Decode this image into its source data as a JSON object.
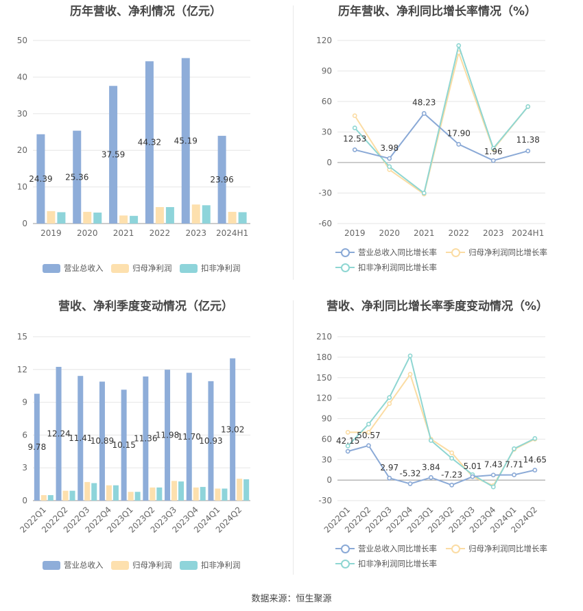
{
  "source": "数据来源：恒生聚源",
  "colors": {
    "revenue": "#8eadd9",
    "parent": "#fde0ae",
    "nonrec": "#8ed4da",
    "revenue_line": "#8aa9d6",
    "parent_line": "#fbdca3",
    "nonrec_line": "#8ed6d2",
    "grid": "#e6e6e6",
    "axis": "#666666"
  },
  "chart_data": [
    {
      "type": "bar",
      "title": "历年营收、净利情况（亿元）",
      "categories": [
        "2019",
        "2020",
        "2021",
        "2022",
        "2023",
        "2024H1"
      ],
      "ylim": [
        0,
        50
      ],
      "yticks": [
        0,
        10,
        20,
        30,
        40,
        50
      ],
      "series": [
        {
          "name": "营业总收入",
          "values": [
            24.39,
            25.36,
            37.59,
            44.32,
            45.19,
            23.96
          ],
          "labeled": true
        },
        {
          "name": "归母净利润",
          "values": [
            3.4,
            3.2,
            2.2,
            4.5,
            5.2,
            3.2
          ],
          "labeled": false
        },
        {
          "name": "扣非净利润",
          "values": [
            3.1,
            3.0,
            2.1,
            4.5,
            5.0,
            3.1
          ],
          "labeled": false
        }
      ],
      "labels": [
        "24.39",
        "25.36",
        "37.59",
        "44.32",
        "45.19",
        "23.96"
      ],
      "legend": "bottom"
    },
    {
      "type": "line",
      "title": "历年营收、净利同比增长率情况（%）",
      "categories": [
        "2019",
        "2020",
        "2021",
        "2022",
        "2023",
        "2024H1"
      ],
      "ylim": [
        -60,
        120
      ],
      "yticks": [
        -60,
        -30,
        0,
        30,
        60,
        90,
        120
      ],
      "series": [
        {
          "name": "营业总收入同比增长率",
          "values": [
            12.53,
            3.98,
            48.23,
            17.9,
            1.96,
            11.38
          ],
          "labeled": true
        },
        {
          "name": "归母净利润同比增长率",
          "values": [
            46,
            -7,
            -31,
            108,
            13,
            55
          ],
          "labeled": false
        },
        {
          "name": "扣非净利润同比增长率",
          "values": [
            34,
            -4,
            -30,
            115,
            14,
            55
          ],
          "labeled": false
        }
      ],
      "labels": [
        "12.53",
        "3.98",
        "48.23",
        "17.90",
        "1.96",
        "11.38"
      ],
      "legend": "bottom"
    },
    {
      "type": "bar",
      "title": "营收、净利季度变动情况（亿元）",
      "categories": [
        "2022Q1",
        "2022Q2",
        "2022Q3",
        "2022Q4",
        "2023Q1",
        "2023Q2",
        "2023Q3",
        "2023Q4",
        "2024Q1",
        "2024Q2"
      ],
      "ylim": [
        0,
        15
      ],
      "yticks": [
        0,
        3,
        6,
        9,
        12,
        15
      ],
      "series": [
        {
          "name": "营业总收入",
          "values": [
            9.78,
            12.24,
            11.41,
            10.89,
            10.15,
            11.36,
            11.98,
            11.7,
            10.93,
            13.02
          ],
          "labeled": true
        },
        {
          "name": "归母净利润",
          "values": [
            0.5,
            0.9,
            1.7,
            1.4,
            0.8,
            1.2,
            1.8,
            1.2,
            1.1,
            2.0
          ],
          "labeled": false
        },
        {
          "name": "扣非净利润",
          "values": [
            0.5,
            0.9,
            1.6,
            1.4,
            0.8,
            1.2,
            1.75,
            1.25,
            1.1,
            1.95
          ],
          "labeled": false
        }
      ],
      "labels": [
        "9.78",
        "12.24",
        "11.41",
        "10.89",
        "10.15",
        "11.36",
        "11.98",
        "11.70",
        "10.93",
        "13.02"
      ],
      "legend": "bottom"
    },
    {
      "type": "line",
      "title": "营收、净利同比增长率季度变动情况（%）",
      "categories": [
        "2022Q1",
        "2022Q2",
        "2022Q3",
        "2022Q4",
        "2023Q1",
        "2023Q2",
        "2023Q3",
        "2023Q4",
        "2024Q1",
        "2024Q2"
      ],
      "ylim": [
        -30,
        210
      ],
      "yticks": [
        -30,
        0,
        30,
        60,
        90,
        120,
        150,
        180,
        210
      ],
      "series": [
        {
          "name": "营业总收入同比增长率",
          "values": [
            42.15,
            50.57,
            2.97,
            -5.32,
            3.84,
            -7.23,
            5.01,
            7.43,
            7.71,
            14.65
          ],
          "labeled": true
        },
        {
          "name": "归母净利润同比增长率",
          "values": [
            70,
            70,
            112,
            155,
            60,
            40,
            5,
            -8,
            45,
            60
          ],
          "labeled": false
        },
        {
          "name": "扣非净利润同比增长率",
          "values": [
            50,
            82,
            121,
            182,
            58,
            32,
            8,
            -10,
            46,
            61
          ],
          "labeled": false
        }
      ],
      "labels": [
        "42.15",
        "50.57",
        "2.97",
        "-5.32",
        "3.84",
        "-7.23",
        "5.01",
        "7.43",
        "7.71",
        "14.65"
      ],
      "legend": "bottom"
    }
  ]
}
